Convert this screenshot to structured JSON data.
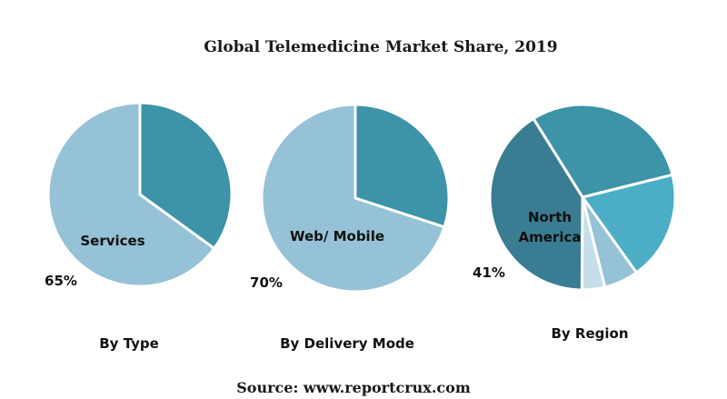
{
  "title": "Global Telemedicine Market Share, 2019",
  "source": "Source: www.reportcrux.com",
  "chart_data": [
    {
      "type": "pie",
      "caption": "By Type",
      "slices": [
        {
          "label": "Services",
          "value": 65,
          "color": "#95c2d6"
        },
        {
          "label": "",
          "value": 35,
          "color": "#3d93a8"
        }
      ],
      "inner_label": "Services",
      "percent_label": "65%"
    },
    {
      "type": "pie",
      "caption": "By Delivery Mode",
      "slices": [
        {
          "label": "Web/ Mobile",
          "value": 70,
          "color": "#95c2d6"
        },
        {
          "label": "",
          "value": 30,
          "color": "#3d93a8"
        }
      ],
      "inner_label": "Web/ Mobile",
      "percent_label": "70%"
    },
    {
      "type": "pie",
      "caption": "By Region",
      "slices": [
        {
          "label": "North America",
          "value": 41,
          "color": "#3a7d92"
        },
        {
          "label": "",
          "value": 30,
          "color": "#3d93a8"
        },
        {
          "label": "",
          "value": 19,
          "color": "#4badc6"
        },
        {
          "label": "",
          "value": 6,
          "color": "#95c2d6"
        },
        {
          "label": "",
          "value": 4,
          "color": "#c4dfea"
        }
      ],
      "inner_label_lines": [
        "North",
        "America"
      ],
      "percent_label": "41%"
    }
  ]
}
